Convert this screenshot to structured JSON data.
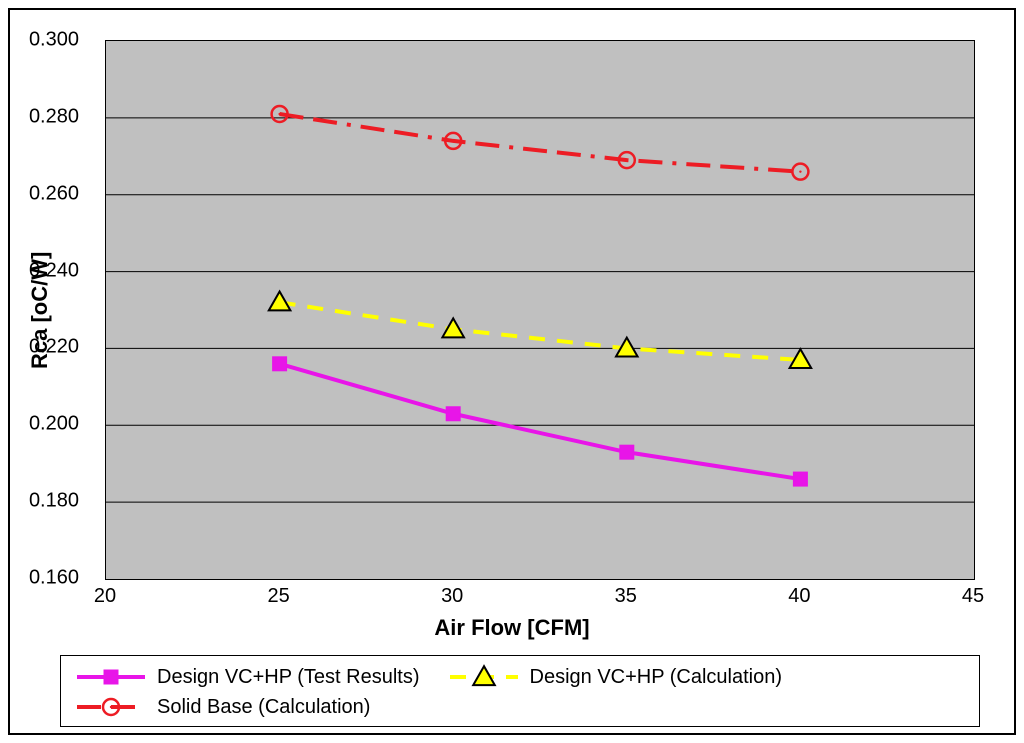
{
  "chart": {
    "type": "line",
    "background_color": "#ffffff",
    "plot_background_color": "#c0c0c0",
    "border_color": "#000000",
    "grid_color": "#000000",
    "x_axis": {
      "title": "Air Flow [CFM]",
      "min": 20,
      "max": 45,
      "tick_step": 5,
      "ticks": [
        20,
        25,
        30,
        35,
        40,
        45
      ],
      "title_fontsize": 22,
      "title_fontweight": "bold",
      "tick_fontsize": 20
    },
    "y_axis": {
      "title": "Rca [oC/W]",
      "min": 0.16,
      "max": 0.3,
      "tick_step": 0.02,
      "ticks": [
        0.16,
        0.18,
        0.2,
        0.22,
        0.24,
        0.26,
        0.28,
        0.3
      ],
      "tick_labels": [
        "0.160",
        "0.180",
        "0.200",
        "0.220",
        "0.240",
        "0.260",
        "0.280",
        "0.300"
      ],
      "title_fontsize": 22,
      "title_fontweight": "bold",
      "tick_fontsize": 20
    },
    "series": [
      {
        "id": "vc_hp_test",
        "label": "Design VC+HP (Test Results)",
        "color": "#e815e8",
        "line_width": 4,
        "dash": "solid",
        "marker": "square-filled",
        "marker_size": 14,
        "marker_fill": "#e815e8",
        "marker_stroke": "#e815e8",
        "x": [
          25,
          30,
          35,
          40
        ],
        "y": [
          0.216,
          0.203,
          0.193,
          0.186
        ]
      },
      {
        "id": "vc_hp_calc",
        "label": "Design VC+HP (Calculation)",
        "color": "#ffff00",
        "line_width": 4,
        "dash": "dashed",
        "dash_pattern": "16 12",
        "marker": "triangle-outline",
        "marker_size": 18,
        "marker_fill": "#ffff00",
        "marker_stroke": "#000000",
        "x": [
          25,
          30,
          35,
          40
        ],
        "y": [
          0.232,
          0.225,
          0.22,
          0.217
        ]
      },
      {
        "id": "solid_base_calc",
        "label": "Solid Base (Calculation)",
        "color": "#ed1c24",
        "line_width": 4,
        "dash": "dash-dot",
        "dash_pattern": "24 10 24 10 4 10",
        "marker": "circle-outline",
        "marker_size": 16,
        "marker_fill": "none",
        "marker_stroke": "#ed1c24",
        "x": [
          25,
          30,
          35,
          40
        ],
        "y": [
          0.281,
          0.274,
          0.269,
          0.266
        ]
      }
    ],
    "legend": {
      "position": "bottom",
      "border_color": "#000000",
      "background_color": "#ffffff",
      "fontsize": 20
    }
  }
}
